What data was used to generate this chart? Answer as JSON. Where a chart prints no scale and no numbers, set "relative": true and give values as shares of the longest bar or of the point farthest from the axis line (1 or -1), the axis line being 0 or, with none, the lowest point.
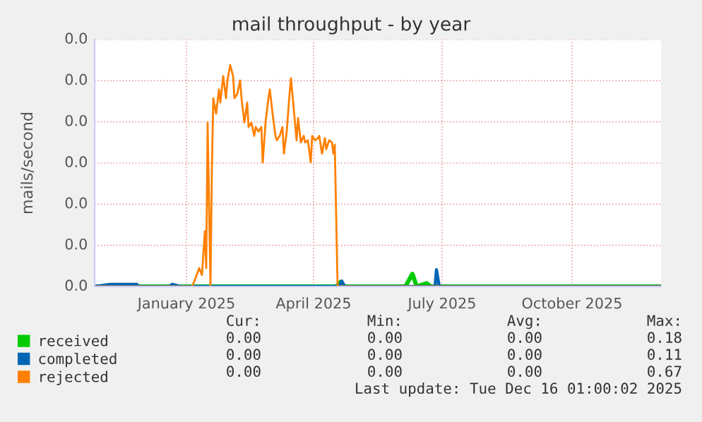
{
  "chart_data": {
    "type": "line",
    "title": "mail throughput - by year",
    "ylabel": "mails/second",
    "relative": true,
    "xlim": [
      "2024-10-28",
      "2025-12-03"
    ],
    "xticks": [
      {
        "value": "2025-01-01",
        "label": "January 2025"
      },
      {
        "value": "2025-04-01",
        "label": "April 2025"
      },
      {
        "value": "2025-07-01",
        "label": "July 2025"
      },
      {
        "value": "2025-10-01",
        "label": "October 2025"
      }
    ],
    "grid": true,
    "legend": "bottom",
    "series": [
      {
        "name": "received",
        "color": "#00cc00",
        "x": [
          "2024-10-28",
          "2025-04-17",
          "2025-04-20",
          "2025-04-23",
          "2025-06-05",
          "2025-06-10",
          "2025-06-13",
          "2025-06-20",
          "2025-06-23",
          "2025-12-03"
        ],
        "values": [
          0,
          0,
          0.02,
          0,
          0,
          0.057,
          0,
          0.015,
          0,
          0
        ]
      },
      {
        "name": "completed",
        "color": "#0066b3",
        "x": [
          "2024-10-28",
          "2024-11-08",
          "2024-11-27",
          "2024-11-28",
          "2024-12-20",
          "2024-12-22",
          "2024-12-28",
          "2025-04-19",
          "2025-04-21",
          "2025-04-23",
          "2025-06-26",
          "2025-06-27",
          "2025-06-29",
          "2025-12-03"
        ],
        "values": [
          0,
          0.01,
          0.01,
          0,
          0,
          0.01,
          0,
          0,
          0.025,
          0,
          0,
          0.076,
          0,
          0
        ]
      },
      {
        "name": "rejected",
        "color": "#ff8000",
        "x": [
          "2024-10-28",
          "2025-01-05",
          "2025-01-07",
          "2025-01-10",
          "2025-01-12",
          "2025-01-14",
          "2025-01-15",
          "2025-01-16",
          "2025-01-18",
          "2025-01-19",
          "2025-01-20",
          "2025-01-22",
          "2025-01-24",
          "2025-01-25",
          "2025-01-27",
          "2025-01-29",
          "2025-01-30",
          "2025-02-01",
          "2025-02-03",
          "2025-02-04",
          "2025-02-06",
          "2025-02-08",
          "2025-02-09",
          "2025-02-11",
          "2025-02-13",
          "2025-02-14",
          "2025-02-16",
          "2025-02-18",
          "2025-02-19",
          "2025-02-21",
          "2025-02-23",
          "2025-02-24",
          "2025-02-26",
          "2025-02-28",
          "2025-03-01",
          "2025-03-03",
          "2025-03-05",
          "2025-03-06",
          "2025-03-08",
          "2025-03-10",
          "2025-03-11",
          "2025-03-13",
          "2025-03-15",
          "2025-03-16",
          "2025-03-18",
          "2025-03-20",
          "2025-03-21",
          "2025-03-23",
          "2025-03-25",
          "2025-03-26",
          "2025-03-28",
          "2025-03-30",
          "2025-03-31",
          "2025-04-02",
          "2025-04-04",
          "2025-04-05",
          "2025-04-07",
          "2025-04-09",
          "2025-04-10",
          "2025-04-12",
          "2025-04-14",
          "2025-04-15",
          "2025-04-16",
          "2025-04-18",
          "2025-12-03"
        ],
        "values": [
          0,
          0,
          0.03,
          0.083,
          0.052,
          0.25,
          0.083,
          0.74,
          0,
          0.53,
          0.85,
          0.78,
          0.89,
          0.83,
          0.95,
          0.85,
          0.93,
          1.0,
          0.95,
          0.85,
          0.87,
          0.93,
          0.85,
          0.74,
          0.83,
          0.72,
          0.74,
          0.68,
          0.72,
          0.7,
          0.72,
          0.56,
          0.74,
          0.85,
          0.89,
          0.78,
          0.68,
          0.66,
          0.68,
          0.72,
          0.6,
          0.7,
          0.87,
          0.94,
          0.8,
          0.66,
          0.76,
          0.65,
          0.68,
          0.65,
          0.66,
          0.56,
          0.68,
          0.66,
          0.67,
          0.68,
          0.6,
          0.67,
          0.62,
          0.66,
          0.65,
          0.6,
          0.64,
          0,
          0
        ]
      }
    ],
    "annotations": [
      "Cur:",
      "Min:",
      "Avg:",
      "Max:",
      "0.00",
      "0.00",
      "0.00",
      "0.18",
      "0.00",
      "0.00",
      "0.00",
      "0.11",
      "0.00",
      "0.00",
      "0.00",
      "0.67",
      "Last update: Tue Dec 16 01:00:02 2025",
      "0.0",
      "0.0",
      "0.0",
      "0.0",
      "0.0",
      "0.0",
      "0.0"
    ]
  }
}
